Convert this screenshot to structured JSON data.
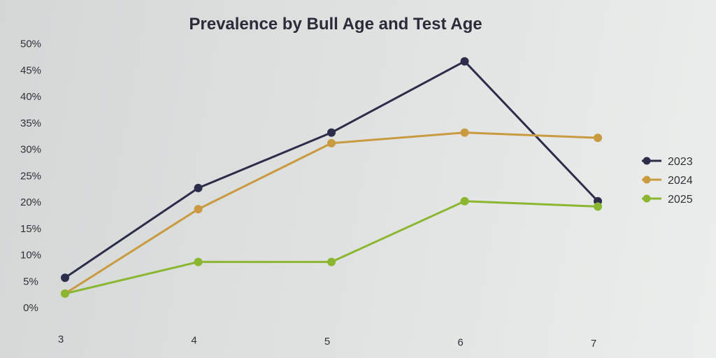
{
  "chart_data": {
    "type": "line",
    "title": "Prevalence by Bull Age and Test Age",
    "xlabel": "",
    "ylabel": "",
    "x": [
      3,
      4,
      5,
      6,
      7
    ],
    "x_tick_labels": [
      "3",
      "4",
      "5",
      "6",
      "7"
    ],
    "y_tick_labels": [
      "0%",
      "5%",
      "10%",
      "15%",
      "20%",
      "25%",
      "30%",
      "35%",
      "40%",
      "45%",
      "50%"
    ],
    "ylim": [
      0,
      50
    ],
    "y_unit": "%",
    "grid": false,
    "legend_position": "right",
    "series": [
      {
        "name": "2023",
        "color": "#2b2d4a",
        "values": [
          5,
          22,
          32.5,
          46,
          19.5
        ]
      },
      {
        "name": "2024",
        "color": "#c99a3f",
        "values": [
          2,
          18,
          30.5,
          32.5,
          31.5
        ]
      },
      {
        "name": "2025",
        "color": "#8ab630",
        "values": [
          2,
          8,
          8,
          19.5,
          18.5
        ]
      }
    ]
  }
}
